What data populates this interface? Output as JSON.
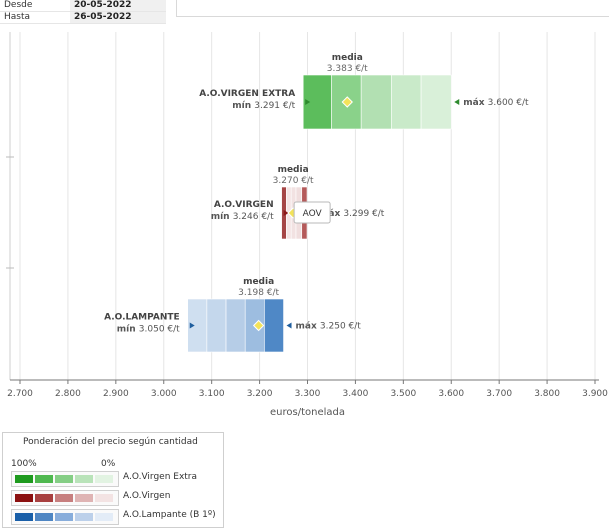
{
  "filters": {
    "rows": [
      {
        "label": "Desde",
        "value": "20-05-2022"
      },
      {
        "label": "Hasta",
        "value": "26-05-2022"
      }
    ]
  },
  "chart_data": {
    "type": "range-bar",
    "xlabel": "euros/tonelada",
    "xlim": [
      2700,
      3900
    ],
    "xticks": [
      2700,
      2800,
      2900,
      3000,
      3100,
      3200,
      3300,
      3400,
      3500,
      3600,
      3700,
      3800,
      3900
    ],
    "xtick_labels": [
      "2.700",
      "2.800",
      "2.900",
      "3.000",
      "3.100",
      "3.200",
      "3.300",
      "3.400",
      "3.500",
      "3.600",
      "3.700",
      "3.800",
      "3.900"
    ],
    "grid": true,
    "media_label": "media",
    "min_label": "mín",
    "max_label": "máx",
    "series": [
      {
        "name": "A.O.VIRGEN EXTRA",
        "min": 3291,
        "max": 3600,
        "media": 3383,
        "min_text": "3.291 €/t",
        "max_text": "3.600 €/t",
        "media_text": "3.383 €/t",
        "bands": [
          3291,
          3350,
          3412,
          3475,
          3537,
          3600
        ],
        "colors": [
          "#5cbd5c",
          "#8ad28a",
          "#b2e0b2",
          "#c9eac9",
          "#d9f0d9"
        ],
        "marker_color": "#2e8b2e"
      },
      {
        "name": "A.O.VIRGEN",
        "min": 3246,
        "max": 3299,
        "media": 3270,
        "min_text": "3.246 €/t",
        "max_text": "3.299 €/t",
        "media_text": "3.270 €/t",
        "bands": [
          3246,
          3256,
          3266,
          3276,
          3288,
          3299
        ],
        "colors": [
          "#a54545",
          "#f4e4e4",
          "#f2e2e2",
          "#f0dede",
          "#b45a5a"
        ],
        "marker_color": "#8b1a1a",
        "tooltip": "AOV"
      },
      {
        "name": "A.O.LAMPANTE",
        "min": 3050,
        "max": 3250,
        "media": 3198,
        "min_text": "3.050 €/t",
        "max_text": "3.250 €/t",
        "media_text": "3.198 €/t",
        "bands": [
          3050,
          3090,
          3130,
          3170,
          3210,
          3250
        ],
        "colors": [
          "#cfdff0",
          "#c4d7ec",
          "#b6cde7",
          "#9dbde0",
          "#4f88c6"
        ],
        "marker_color": "#1f5e9e"
      }
    ]
  },
  "legend": {
    "title": "Ponderación del precio según cantidad",
    "pct_high": "100%",
    "pct_low": "0%",
    "rows": [
      {
        "name": "A.O.Virgen Extra",
        "colors": [
          "#1e9a1e",
          "#4fb84f",
          "#85ce85",
          "#b9e3b9",
          "#e2f3e2"
        ]
      },
      {
        "name": "A.O.Virgen",
        "colors": [
          "#8b1010",
          "#a84040",
          "#c77f7f",
          "#dfb4b4",
          "#f3e3e3"
        ]
      },
      {
        "name": "A.O.Lampante (B 1º)",
        "colors": [
          "#1a5fa8",
          "#4f86c3",
          "#88addb",
          "#bcd0ea",
          "#e3ecf7"
        ]
      }
    ]
  }
}
